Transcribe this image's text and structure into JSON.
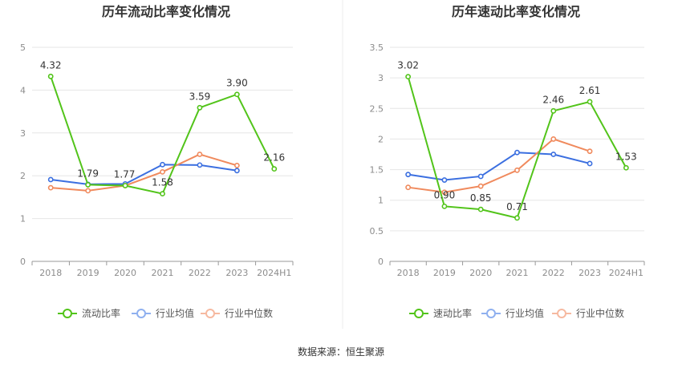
{
  "colors": {
    "series": [
      "#52c41a",
      "#3b6fe0",
      "#f08a5d"
    ],
    "legend_marker": [
      "#52c41a",
      "#8fb0ef",
      "#f6b9a0"
    ],
    "grid": "#e6e6e6",
    "axis": "#999999",
    "tick_text": "#8c8c8c",
    "title": "#333333",
    "divider": "#eeeeee"
  },
  "footer": "数据来源：恒生聚源",
  "chart_data": [
    {
      "type": "line",
      "title": "历年流动比率变化情况",
      "categories": [
        "2018",
        "2019",
        "2020",
        "2021",
        "2022",
        "2023",
        "2024H1"
      ],
      "y_ticks": [
        "0",
        "1",
        "2",
        "3",
        "4",
        "5"
      ],
      "ylim": [
        0,
        5
      ],
      "grid": true,
      "legend_position": "bottom",
      "series": [
        {
          "name": "流动比率",
          "values": [
            4.32,
            1.79,
            1.77,
            1.58,
            3.59,
            3.9,
            2.16
          ],
          "labels": [
            "4.32",
            "1.79",
            "1.77",
            "1.58",
            "3.59",
            "3.90",
            "2.16"
          ]
        },
        {
          "name": "行业均值",
          "values": [
            1.91,
            1.8,
            1.81,
            2.26,
            2.25,
            2.12,
            null
          ]
        },
        {
          "name": "行业中位数",
          "values": [
            1.72,
            1.65,
            1.77,
            2.09,
            2.5,
            2.24,
            null
          ]
        }
      ]
    },
    {
      "type": "line",
      "title": "历年速动比率变化情况",
      "categories": [
        "2018",
        "2019",
        "2020",
        "2021",
        "2022",
        "2023",
        "2024H1"
      ],
      "y_ticks": [
        "0",
        "0.5",
        "1",
        "1.5",
        "2",
        "2.5",
        "3",
        "3.5"
      ],
      "ylim": [
        0,
        3.5
      ],
      "grid": true,
      "legend_position": "bottom",
      "series": [
        {
          "name": "速动比率",
          "values": [
            3.02,
            0.9,
            0.85,
            0.71,
            2.46,
            2.61,
            1.53
          ],
          "labels": [
            "3.02",
            "0.90",
            "0.85",
            "0.71",
            "2.46",
            "2.61",
            "1.53"
          ]
        },
        {
          "name": "行业均值",
          "values": [
            1.42,
            1.33,
            1.39,
            1.78,
            1.75,
            1.6,
            null
          ]
        },
        {
          "name": "行业中位数",
          "values": [
            1.21,
            1.13,
            1.23,
            1.49,
            2.0,
            1.8,
            null
          ]
        }
      ]
    }
  ]
}
